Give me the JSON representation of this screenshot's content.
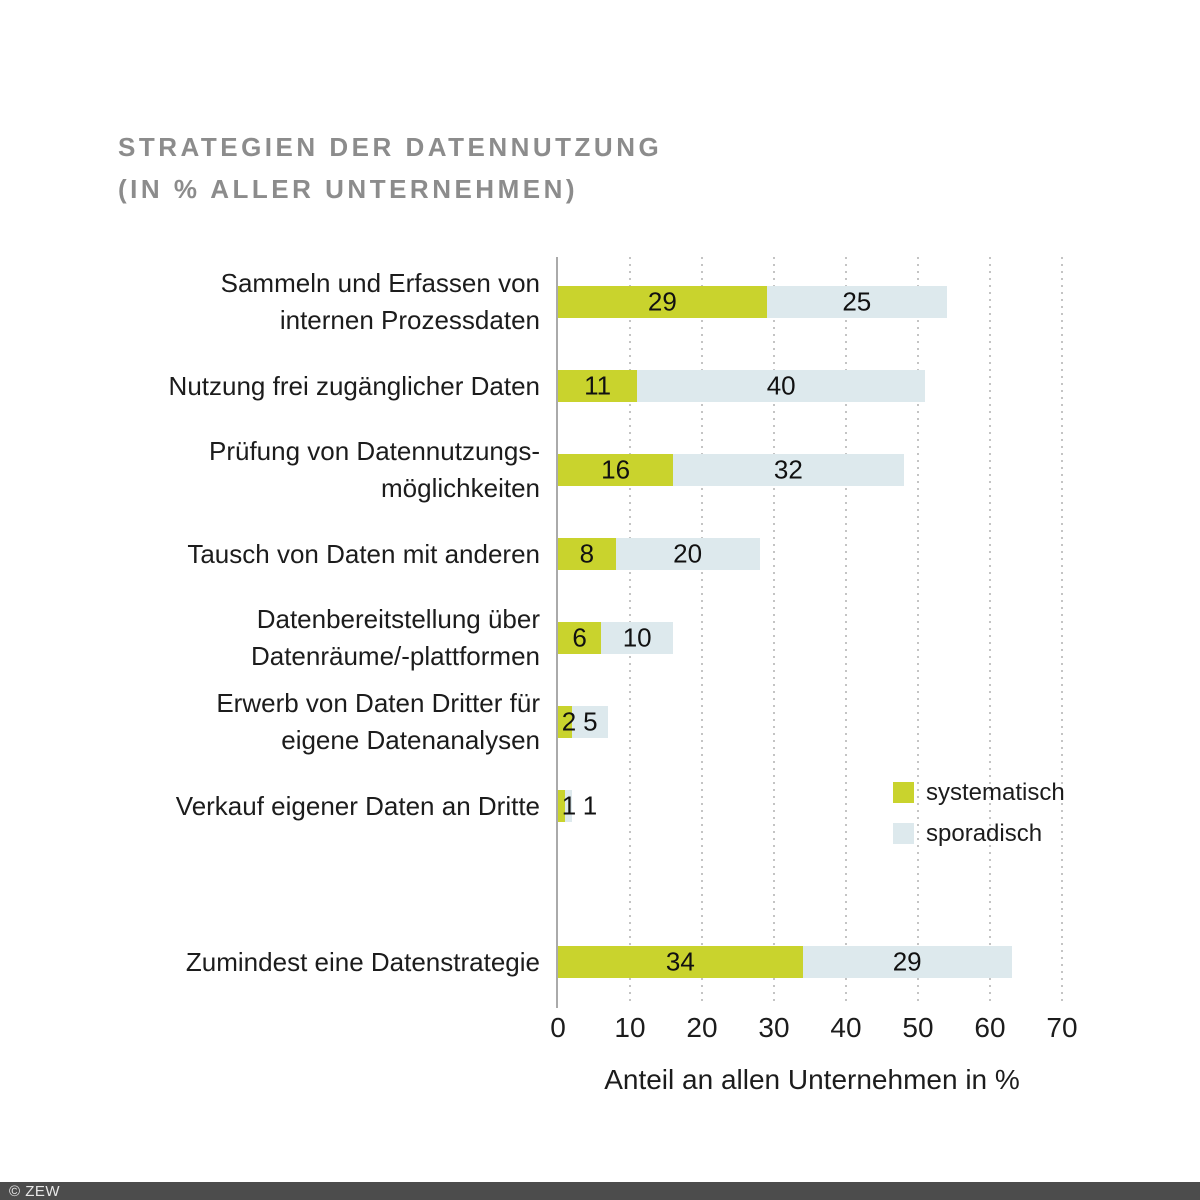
{
  "title": {
    "line1": "STRATEGIEN DER DATENNUTZUNG",
    "line2": "(IN % ALLER UNTERNEHMEN)"
  },
  "colors": {
    "systematisch": "#c9d32d",
    "sporadisch": "#dde9ed",
    "title_gray": "#8c8c8c",
    "grid": "#c4c4c4",
    "axis_line": "#aaaaaa",
    "footer_bg": "#4c4c4c",
    "footer_text": "#e8e8e8"
  },
  "chart_data": {
    "type": "bar",
    "orientation": "horizontal",
    "stacked": true,
    "title": "STRATEGIEN DER DATENNUTZUNG (IN % ALLER UNTERNEHMEN)",
    "xlabel": "Anteil an allen Unternehmen in %",
    "ylabel": "",
    "xlim": [
      0,
      70
    ],
    "xticks": [
      0,
      10,
      20,
      30,
      40,
      50,
      60,
      70
    ],
    "grid": "dotted-vertical",
    "legend_position": "right-middle",
    "categories": [
      "Sammeln und Erfassen von internen Prozessdaten",
      "Nutzung frei zugänglicher Daten",
      "Prüfung von Datennutzungsmöglichkeiten",
      "Tausch von Daten mit anderen",
      "Datenbereitstellung über Datenräume/-plattformen",
      "Erwerb von Daten Dritter für eigene Datenanalysen",
      "Verkauf eigener Daten an Dritte",
      "Zumindest eine Datenstrategie"
    ],
    "category_label_lines": [
      [
        "Sammeln und Erfassen von",
        "internen Prozessdaten"
      ],
      [
        "Nutzung frei zugänglicher Daten"
      ],
      [
        "Prüfung von Datennutzungs-",
        "möglichkeiten"
      ],
      [
        "Tausch von Daten mit anderen"
      ],
      [
        "Datenbereitstellung über",
        "Datenräume/-plattformen"
      ],
      [
        "Erwerb von Daten Dritter für",
        "eigene Datenanalysen"
      ],
      [
        "Verkauf eigener Daten an Dritte"
      ],
      [
        "Zumindest eine Datenstrategie"
      ]
    ],
    "series": [
      {
        "name": "systematisch",
        "values": [
          29,
          11,
          16,
          8,
          6,
          2,
          1,
          34
        ]
      },
      {
        "name": "sporadisch",
        "values": [
          25,
          40,
          32,
          20,
          10,
          5,
          1,
          29
        ]
      }
    ]
  },
  "legend": {
    "items": [
      {
        "label": "systematisch"
      },
      {
        "label": "sporadisch"
      }
    ]
  },
  "axis": {
    "label": "Anteil an allen Unternehmen in %"
  },
  "footer": {
    "text": "© ZEW"
  }
}
